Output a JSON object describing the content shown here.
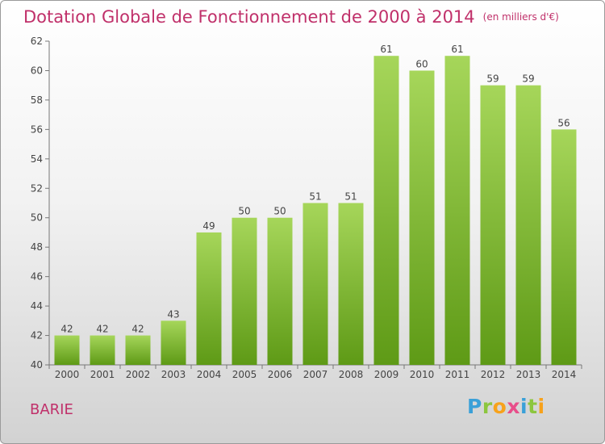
{
  "header": {
    "title": "Dotation Globale de Fonctionnement de 2000 à 2014",
    "unit": "(en milliers d'€)"
  },
  "footer": {
    "city": "BARIE",
    "logo_text": "Proxiti"
  },
  "colors": {
    "title": "#c0306a",
    "bar_top": "#a6d65a",
    "bar_bottom": "#5e9a16",
    "axis": "#555555"
  },
  "chart_data": {
    "type": "bar",
    "title": "Dotation Globale de Fonctionnement de 2000 à 2014",
    "categories": [
      "2000",
      "2001",
      "2002",
      "2003",
      "2004",
      "2005",
      "2006",
      "2007",
      "2008",
      "2009",
      "2010",
      "2011",
      "2012",
      "2013",
      "2014"
    ],
    "values": [
      42,
      42,
      42,
      43,
      49,
      50,
      50,
      51,
      51,
      61,
      60,
      61,
      59,
      59,
      56
    ],
    "ylim": [
      40,
      62
    ],
    "yticks": [
      40,
      42,
      44,
      46,
      48,
      50,
      52,
      54,
      56,
      58,
      60,
      62
    ],
    "grid": false,
    "legend": "none"
  }
}
